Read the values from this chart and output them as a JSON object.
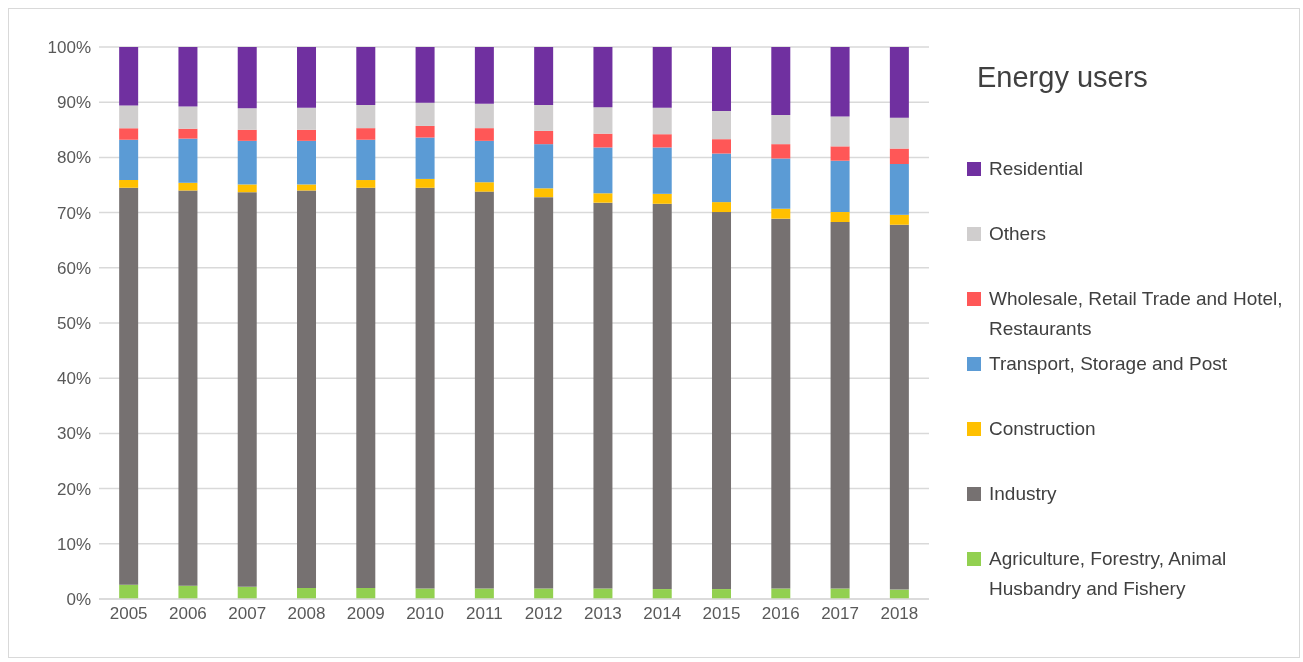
{
  "chart_data": {
    "type": "bar",
    "stacked": true,
    "legend_title": "Energy users",
    "categories": [
      "2005",
      "2006",
      "2007",
      "2008",
      "2009",
      "2010",
      "2011",
      "2012",
      "2013",
      "2014",
      "2015",
      "2016",
      "2017",
      "2018"
    ],
    "series": [
      {
        "name": "Agriculture, Forestry, Animal Husbandry and Fishery",
        "color": "#92d050",
        "values": [
          2.6,
          2.4,
          2.2,
          2.0,
          2.0,
          1.9,
          1.9,
          1.9,
          1.9,
          1.8,
          1.8,
          1.9,
          1.9,
          1.7
        ]
      },
      {
        "name": "Industry",
        "color": "#767171",
        "values": [
          71.9,
          71.6,
          71.5,
          72.0,
          72.5,
          72.6,
          71.9,
          70.9,
          69.9,
          69.8,
          68.3,
          67.0,
          66.4,
          66.1
        ]
      },
      {
        "name": "Construction",
        "color": "#ffc000",
        "values": [
          1.4,
          1.4,
          1.4,
          1.1,
          1.4,
          1.6,
          1.7,
          1.6,
          1.7,
          1.8,
          1.8,
          1.8,
          1.8,
          1.8
        ]
      },
      {
        "name": "Transport, Storage and Post",
        "color": "#5b9bd5",
        "values": [
          7.3,
          8.0,
          7.9,
          7.9,
          7.3,
          7.5,
          7.5,
          8.0,
          8.3,
          8.4,
          8.8,
          9.1,
          9.3,
          9.2
        ]
      },
      {
        "name": "Wholesale, Retail Trade and Hotel, Restaurants",
        "color": "#ff5757",
        "values": [
          2.1,
          1.8,
          2.0,
          2.0,
          2.1,
          2.1,
          2.3,
          2.4,
          2.5,
          2.4,
          2.6,
          2.6,
          2.6,
          2.8
        ]
      },
      {
        "name": "Others",
        "color": "#d0cece",
        "values": [
          4.1,
          4.0,
          3.9,
          4.0,
          4.2,
          4.2,
          4.4,
          4.7,
          4.8,
          4.8,
          5.1,
          5.3,
          5.4,
          5.6
        ]
      },
      {
        "name": "Residential",
        "color": "#7030a0",
        "values": [
          10.6,
          10.8,
          11.1,
          11.0,
          10.5,
          10.1,
          10.3,
          10.5,
          10.9,
          11.0,
          11.6,
          12.3,
          12.6,
          12.8
        ]
      }
    ],
    "ylim": [
      0,
      100
    ],
    "yticks": [
      {
        "value": 0,
        "label": "0%"
      },
      {
        "value": 10,
        "label": "10%"
      },
      {
        "value": 20,
        "label": "20%"
      },
      {
        "value": 30,
        "label": "30%"
      },
      {
        "value": 40,
        "label": "40%"
      },
      {
        "value": 50,
        "label": "50%"
      },
      {
        "value": 60,
        "label": "60%"
      },
      {
        "value": 70,
        "label": "70%"
      },
      {
        "value": 80,
        "label": "80%"
      },
      {
        "value": 90,
        "label": "90%"
      },
      {
        "value": 100,
        "label": "100%"
      }
    ],
    "grid": "y",
    "legend": "right"
  }
}
